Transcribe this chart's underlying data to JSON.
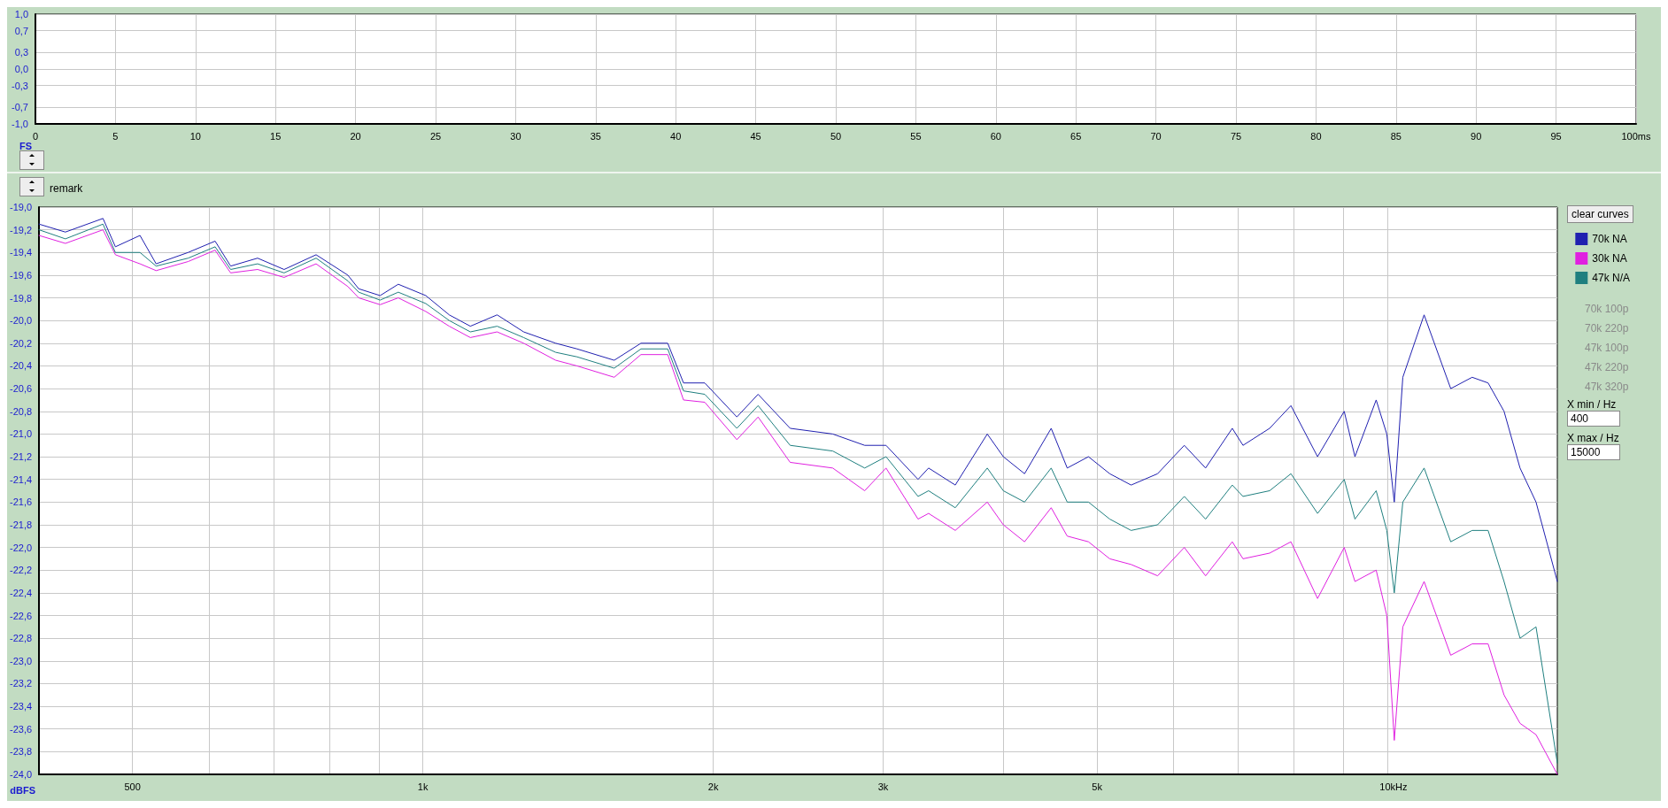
{
  "chart_data": [
    {
      "type": "line",
      "ylabel": "FS",
      "xlim": [
        0,
        100
      ],
      "ylim": [
        -1,
        1
      ],
      "grid": true,
      "legend": false,
      "xticks": [
        0,
        5,
        10,
        15,
        20,
        25,
        30,
        35,
        40,
        45,
        50,
        55,
        60,
        65,
        70,
        75,
        80,
        85,
        90,
        95,
        {
          "value": 100,
          "label": "100ms"
        }
      ],
      "yticks": [
        {
          "value": -1,
          "label": "-1,0"
        },
        {
          "value": -0.7,
          "label": "-0,7"
        },
        {
          "value": -0.3,
          "label": "-0,3"
        },
        {
          "value": 0,
          "label": "0,0"
        },
        {
          "value": 0.3,
          "label": "0,3"
        },
        {
          "value": 0.7,
          "label": "0,7"
        },
        {
          "value": 1,
          "label": "1,0"
        }
      ]
    },
    {
      "type": "line",
      "ylabel": "dBFS",
      "log": "x",
      "grid": true,
      "legend": "right",
      "xlim": [
        400,
        15000
      ],
      "ylim": [
        -24,
        -19
      ],
      "xticks": [
        {
          "value": 500,
          "label": "500"
        },
        {
          "value": 600,
          "label": null
        },
        {
          "value": 700,
          "label": null
        },
        {
          "value": 800,
          "label": null
        },
        {
          "value": 900,
          "label": null
        },
        {
          "value": 1000,
          "label": "1k"
        },
        {
          "value": 2000,
          "label": "2k"
        },
        {
          "value": 3000,
          "label": "3k"
        },
        {
          "value": 4000,
          "label": null
        },
        {
          "value": 5000,
          "label": "5k"
        },
        {
          "value": 6000,
          "label": null
        },
        {
          "value": 7000,
          "label": null
        },
        {
          "value": 8000,
          "label": null
        },
        {
          "value": 9000,
          "label": null
        },
        {
          "value": 10000,
          "label": "10k"
        }
      ],
      "xlabel": "Hz",
      "yticks": [
        {
          "value": -24,
          "label": "-24,0"
        },
        {
          "value": -23.8,
          "label": "-23,8"
        },
        {
          "value": -23.6,
          "label": "-23,6"
        },
        {
          "value": -23.4,
          "label": "-23,4"
        },
        {
          "value": -23.2,
          "label": "-23,2"
        },
        {
          "value": -23,
          "label": "-23,0"
        },
        {
          "value": -22.8,
          "label": "-22,8"
        },
        {
          "value": -22.6,
          "label": "-22,6"
        },
        {
          "value": -22.4,
          "label": "-22,4"
        },
        {
          "value": -22.2,
          "label": "-22,2"
        },
        {
          "value": -22,
          "label": "-22,0"
        },
        {
          "value": -21.8,
          "label": "-21,8"
        },
        {
          "value": -21.6,
          "label": "-21,6"
        },
        {
          "value": -21.4,
          "label": "-21,4"
        },
        {
          "value": -21.2,
          "label": "-21,2"
        },
        {
          "value": -21,
          "label": "-21,0"
        },
        {
          "value": -20.8,
          "label": "-20,8"
        },
        {
          "value": -20.6,
          "label": "-20,6"
        },
        {
          "value": -20.4,
          "label": "-20,4"
        },
        {
          "value": -20.2,
          "label": "-20,2"
        },
        {
          "value": -20,
          "label": "-20,0"
        },
        {
          "value": -19.8,
          "label": "-19,8"
        },
        {
          "value": -19.6,
          "label": "-19,6"
        },
        {
          "value": -19.4,
          "label": "-19,4"
        },
        {
          "value": -19.2,
          "label": "-19,2"
        },
        {
          "value": -19,
          "label": "-19,0"
        }
      ],
      "x": [
        400,
        426,
        466,
        480,
        509,
        529,
        571,
        609,
        632,
        674,
        718,
        775,
        836,
        858,
        903,
        943,
        1007,
        1065,
        1120,
        1194,
        1272,
        1373,
        1445,
        1579,
        1683,
        1794,
        1863,
        1960,
        2116,
        2226,
        2403,
        2660,
        2871,
        3021,
        3261,
        3344,
        3564,
        3847,
        3997,
        4205,
        4481,
        4656,
        4898,
        5153,
        5423,
        5777,
        6157,
        6478,
        6904,
        7083,
        7548,
        7942,
        8463,
        9019,
        9253,
        9734,
        9984,
        10164,
        10373,
        10914,
        11630,
        12240,
        12715,
        13208,
        13722,
        14256,
        15000
      ],
      "series": [
        {
          "name": "70k NA",
          "color": "#2020b0",
          "values": [
            -19.15,
            -19.22,
            -19.1,
            -19.35,
            -19.25,
            -19.5,
            -19.4,
            -19.3,
            -19.52,
            -19.45,
            -19.55,
            -19.42,
            -19.6,
            -19.72,
            -19.78,
            -19.68,
            -19.78,
            -19.95,
            -20.05,
            -19.95,
            -20.1,
            -20.2,
            -20.25,
            -20.35,
            -20.2,
            -20.2,
            -20.55,
            -20.55,
            -20.85,
            -20.65,
            -20.95,
            -21.0,
            -21.1,
            -21.1,
            -21.4,
            -21.3,
            -21.45,
            -21.0,
            -21.2,
            -21.35,
            -20.95,
            -21.3,
            -21.2,
            -21.35,
            -21.45,
            -21.35,
            -21.1,
            -21.3,
            -20.95,
            -21.1,
            -20.95,
            -20.75,
            -21.2,
            -20.8,
            -21.2,
            -20.7,
            -21.0,
            -21.6,
            -20.5,
            -19.95,
            -20.6,
            -20.5,
            -20.55,
            -20.8,
            -21.3,
            -21.6,
            -22.3
          ]
        },
        {
          "name": "30k NA",
          "color": "#e020e0",
          "values": [
            -19.25,
            -19.32,
            -19.2,
            -19.42,
            -19.5,
            -19.56,
            -19.48,
            -19.38,
            -19.58,
            -19.55,
            -19.62,
            -19.5,
            -19.7,
            -19.8,
            -19.86,
            -19.8,
            -19.92,
            -20.05,
            -20.15,
            -20.1,
            -20.2,
            -20.35,
            -20.4,
            -20.5,
            -20.3,
            -20.3,
            -20.7,
            -20.72,
            -21.05,
            -20.85,
            -21.25,
            -21.3,
            -21.5,
            -21.3,
            -21.75,
            -21.7,
            -21.85,
            -21.6,
            -21.8,
            -21.95,
            -21.65,
            -21.9,
            -21.95,
            -22.1,
            -22.15,
            -22.25,
            -22.0,
            -22.25,
            -21.95,
            -22.1,
            -22.05,
            -21.95,
            -22.45,
            -22.0,
            -22.3,
            -22.2,
            -22.6,
            -23.7,
            -22.7,
            -22.3,
            -22.95,
            -22.85,
            -22.85,
            -23.3,
            -23.55,
            -23.65,
            -24.0
          ]
        },
        {
          "name": "47k N/A",
          "color": "#1f7f7f",
          "values": [
            -19.2,
            -19.28,
            -19.15,
            -19.4,
            -19.4,
            -19.52,
            -19.45,
            -19.35,
            -19.55,
            -19.5,
            -19.58,
            -19.45,
            -19.65,
            -19.75,
            -19.82,
            -19.75,
            -19.85,
            -20.0,
            -20.1,
            -20.05,
            -20.15,
            -20.28,
            -20.32,
            -20.42,
            -20.25,
            -20.25,
            -20.62,
            -20.65,
            -20.95,
            -20.75,
            -21.1,
            -21.15,
            -21.3,
            -21.2,
            -21.55,
            -21.5,
            -21.65,
            -21.3,
            -21.5,
            -21.6,
            -21.3,
            -21.6,
            -21.6,
            -21.75,
            -21.85,
            -21.8,
            -21.55,
            -21.75,
            -21.45,
            -21.55,
            -21.5,
            -21.35,
            -21.7,
            -21.4,
            -21.75,
            -21.5,
            -21.85,
            -22.4,
            -21.6,
            -21.3,
            -21.95,
            -21.85,
            -21.85,
            -22.3,
            -22.8,
            -22.7,
            -23.9
          ]
        }
      ],
      "annotations": [
        "remark",
        "clear curves",
        "70k 100p",
        "70k 220p",
        "47k 100p",
        "47k 220p",
        "47k 320p",
        "X min / Hz",
        "400",
        "X max / Hz",
        "15000"
      ]
    }
  ]
}
